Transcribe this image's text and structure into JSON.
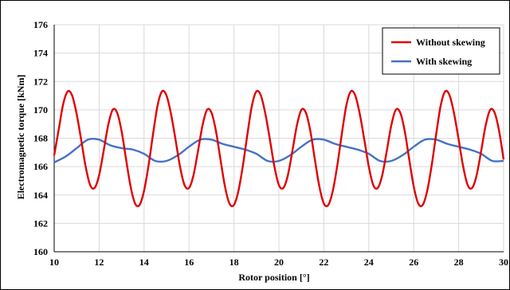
{
  "chart_data": {
    "type": "line",
    "title": "",
    "xlabel": "Rotor position [°]",
    "ylabel": "Electromagnetic torque [kNm]",
    "xlim": [
      10,
      30
    ],
    "ylim": [
      160,
      176
    ],
    "xticks": [
      10,
      12,
      14,
      16,
      18,
      20,
      22,
      24,
      26,
      28,
      30
    ],
    "yticks": [
      160,
      162,
      164,
      166,
      168,
      170,
      172,
      174,
      176
    ],
    "grid": true,
    "legend_position": "top-right",
    "series": [
      {
        "name": "Without skewing",
        "color": "#e00000",
        "x": [
          10.0,
          10.2,
          10.4,
          10.6,
          10.8,
          11.0,
          11.2,
          11.4,
          11.6,
          11.8,
          12.0,
          12.2,
          12.4,
          12.6,
          12.8,
          13.0,
          13.2,
          13.4,
          13.6,
          13.8,
          14.0,
          14.2,
          14.4,
          14.6,
          14.8,
          15.0,
          15.2,
          15.4,
          15.6,
          15.8,
          16.0,
          16.2,
          16.4,
          16.6,
          16.8,
          17.0,
          17.2,
          17.4,
          17.6,
          17.8,
          18.0,
          18.2,
          18.4,
          18.6,
          18.8,
          19.0,
          19.2,
          19.4,
          19.6,
          19.8,
          20.0,
          20.2,
          20.4,
          20.6,
          20.8,
          21.0,
          21.2,
          21.4,
          21.6,
          21.8,
          22.0,
          22.2,
          22.4,
          22.6,
          22.8,
          23.0,
          23.2,
          23.4,
          23.6,
          23.8,
          24.0,
          24.2,
          24.4,
          24.6,
          24.8,
          25.0,
          25.2,
          25.4,
          25.6,
          25.8,
          26.0,
          26.2,
          26.4,
          26.6,
          26.8,
          27.0,
          27.2,
          27.4,
          27.6,
          27.8,
          28.0,
          28.2,
          28.4,
          28.6,
          28.8,
          29.0,
          29.2,
          29.4,
          29.6,
          29.8,
          30.0
        ],
        "values": [
          166.8,
          168.6,
          170.4,
          171.3,
          171.0,
          169.7,
          167.9,
          166.0,
          164.7,
          164.5,
          165.4,
          167.1,
          168.9,
          170.0,
          169.8,
          168.5,
          166.5,
          164.6,
          163.4,
          163.3,
          164.3,
          166.1,
          168.3,
          170.3,
          171.3,
          171.0,
          169.7,
          167.9,
          166.0,
          164.7,
          164.5,
          165.4,
          167.1,
          168.9,
          170.0,
          169.8,
          168.5,
          166.5,
          164.6,
          163.4,
          163.3,
          164.3,
          166.1,
          168.3,
          170.3,
          171.3,
          171.0,
          169.7,
          167.9,
          166.0,
          164.7,
          164.5,
          165.4,
          167.1,
          168.9,
          170.0,
          169.8,
          168.5,
          166.5,
          164.6,
          163.4,
          163.3,
          164.3,
          166.1,
          168.3,
          170.3,
          171.3,
          171.0,
          169.7,
          167.9,
          166.0,
          164.7,
          164.5,
          165.4,
          167.1,
          168.9,
          170.0,
          169.8,
          168.5,
          166.5,
          164.6,
          163.4,
          163.3,
          164.3,
          166.1,
          168.3,
          170.3,
          171.3,
          171.0,
          169.7,
          167.9,
          166.0,
          164.7,
          164.5,
          165.4,
          167.1,
          168.9,
          170.0,
          169.8,
          168.5,
          166.5
        ]
      },
      {
        "name": "With skewing",
        "color": "#4472c4",
        "x": [
          10.0,
          10.5,
          11.0,
          11.5,
          12.0,
          12.5,
          13.0,
          13.5,
          14.0,
          14.5,
          15.0,
          15.5,
          16.0,
          16.5,
          17.0,
          17.5,
          18.0,
          18.5,
          19.0,
          19.5,
          20.0,
          20.5,
          21.0,
          21.5,
          22.0,
          22.5,
          23.0,
          23.5,
          24.0,
          24.5,
          25.0,
          25.5,
          26.0,
          26.5,
          27.0,
          27.5,
          28.0,
          28.5,
          29.0,
          29.5,
          30.0
        ],
        "values": [
          166.3,
          166.7,
          167.3,
          167.9,
          167.9,
          167.5,
          167.3,
          167.2,
          166.9,
          166.4,
          166.4,
          166.8,
          167.4,
          167.9,
          167.9,
          167.6,
          167.4,
          167.2,
          166.9,
          166.4,
          166.4,
          166.8,
          167.4,
          167.9,
          167.9,
          167.6,
          167.4,
          167.2,
          166.9,
          166.4,
          166.4,
          166.8,
          167.4,
          167.9,
          167.9,
          167.6,
          167.4,
          167.2,
          166.9,
          166.4,
          166.4
        ]
      }
    ]
  }
}
